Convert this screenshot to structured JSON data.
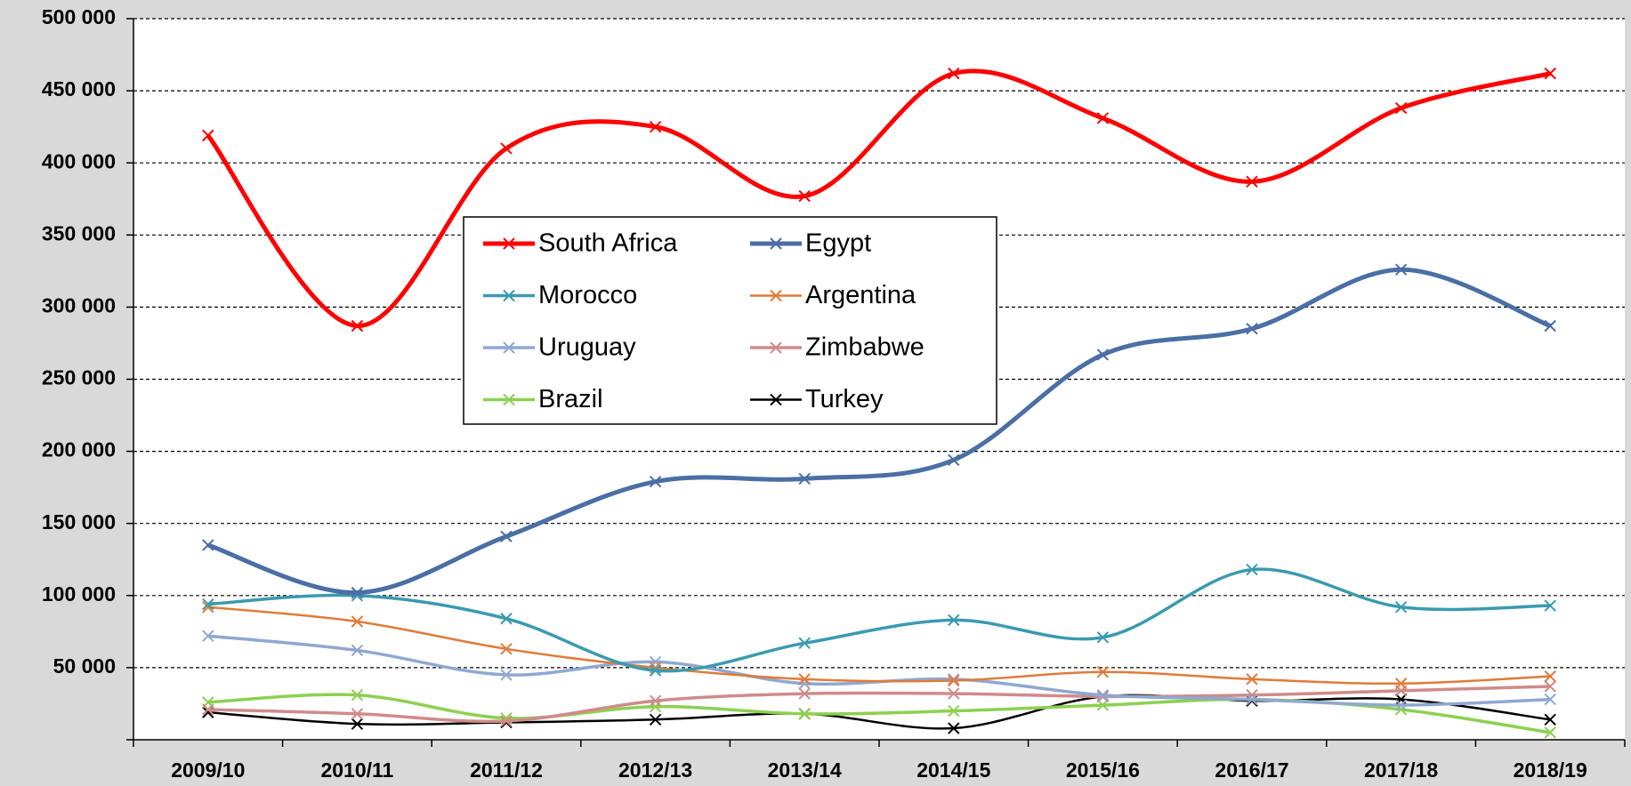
{
  "chart_data": {
    "type": "line",
    "categories": [
      "2009/10",
      "2010/11",
      "2011/12",
      "2012/13",
      "2013/14",
      "2014/15",
      "2015/16",
      "2016/17",
      "2017/18",
      "2018/19"
    ],
    "series": [
      {
        "name": "South Africa",
        "color": "#ff0000",
        "values": [
          419000,
          287000,
          410000,
          425000,
          377000,
          462000,
          431000,
          387000,
          438000,
          462000
        ]
      },
      {
        "name": "Egypt",
        "color": "#4a6fa5",
        "values": [
          135000,
          102000,
          141000,
          179000,
          181000,
          194000,
          267000,
          285000,
          326000,
          287000
        ]
      },
      {
        "name": "Morocco",
        "color": "#3a9ab0",
        "values": [
          94000,
          100000,
          84000,
          48000,
          67000,
          83000,
          71000,
          118000,
          92000,
          93000
        ]
      },
      {
        "name": "Argentina",
        "color": "#e07b39",
        "values": [
          92000,
          82000,
          63000,
          50000,
          42000,
          41000,
          47000,
          42000,
          39000,
          44000
        ]
      },
      {
        "name": "Uruguay",
        "color": "#8fa8d0",
        "values": [
          72000,
          62000,
          45000,
          54000,
          39000,
          42000,
          31000,
          28000,
          24000,
          28000
        ]
      },
      {
        "name": "Zimbabwe",
        "color": "#d08a8a",
        "values": [
          21000,
          18000,
          13000,
          27000,
          32000,
          32000,
          30000,
          31000,
          34000,
          37000
        ]
      },
      {
        "name": "Brazil",
        "color": "#8cd050",
        "values": [
          26000,
          31000,
          15000,
          23000,
          18000,
          20000,
          24000,
          28000,
          21000,
          5000
        ]
      },
      {
        "name": "Turkey",
        "color": "#000000",
        "values": [
          19000,
          11000,
          12000,
          14000,
          18000,
          8000,
          30000,
          27000,
          28000,
          14000
        ]
      }
    ],
    "ylim": [
      0,
      500000
    ],
    "yticks": [
      {
        "value": 0,
        "label": ""
      },
      {
        "value": 50000,
        "label": "50 000"
      },
      {
        "value": 100000,
        "label": "100 000"
      },
      {
        "value": 150000,
        "label": "150 000"
      },
      {
        "value": 200000,
        "label": "200 000"
      },
      {
        "value": 250000,
        "label": "250 000"
      },
      {
        "value": 300000,
        "label": "300 000"
      },
      {
        "value": 350000,
        "label": "350 000"
      },
      {
        "value": 400000,
        "label": "400 000"
      },
      {
        "value": 450000,
        "label": "450 000"
      },
      {
        "value": 500000,
        "label": "500 000"
      }
    ],
    "grid": true
  }
}
